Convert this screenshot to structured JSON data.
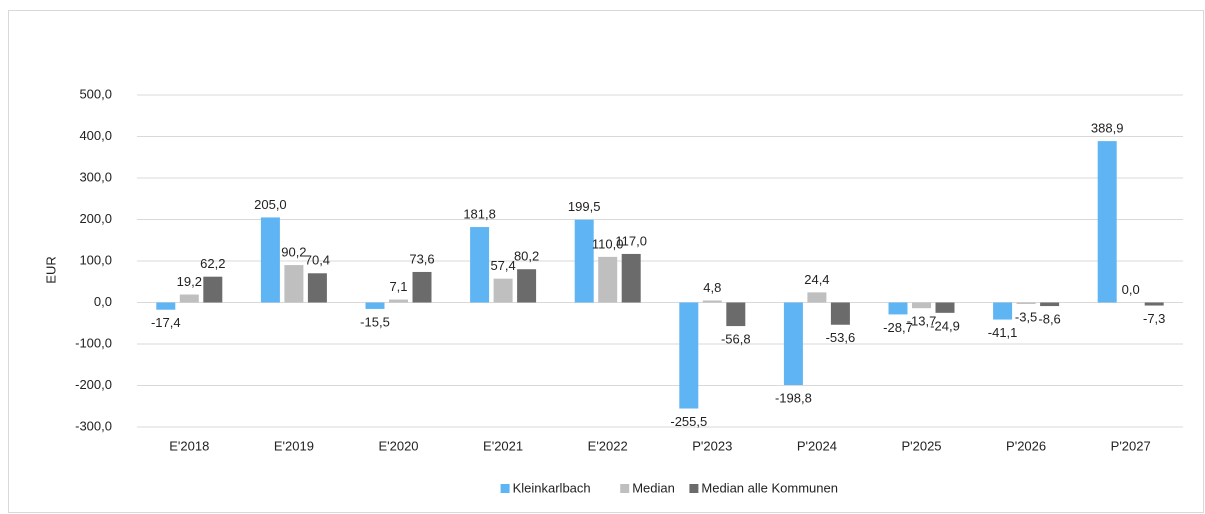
{
  "chart_data": {
    "type": "bar",
    "y_label": "EUR",
    "categories": [
      "E'2018",
      "E'2019",
      "E'2020",
      "E'2021",
      "E'2022",
      "P'2023",
      "P'2024",
      "P'2025",
      "P'2026",
      "P'2027"
    ],
    "series": [
      {
        "name": "Kleinkarlbach",
        "color": "#5fb4f4",
        "values": [
          -17.4,
          205.0,
          -15.5,
          181.8,
          199.5,
          -255.5,
          -198.8,
          -28.7,
          -41.1,
          388.9
        ],
        "value_labels": [
          "-17,4",
          "205,0",
          "-15,5",
          "181,8",
          "199,5",
          "-255,5",
          "-198,8",
          "-28,7",
          "-41,1",
          "388,9"
        ]
      },
      {
        "name": "Median",
        "color": "#bfbfbf",
        "values": [
          19.2,
          90.2,
          7.1,
          57.4,
          110.0,
          4.8,
          24.4,
          -13.7,
          -3.5,
          0.0
        ],
        "value_labels": [
          "19,2",
          "90,2",
          "7,1",
          "57,4",
          "110,0",
          "4,8",
          "24,4",
          "-13,7",
          "-3,5",
          "0,0"
        ]
      },
      {
        "name": "Median alle Kommunen",
        "color": "#6b6b6b",
        "values": [
          62.2,
          70.4,
          73.6,
          80.2,
          117.0,
          -56.8,
          -53.6,
          -24.9,
          -8.6,
          -7.3
        ],
        "value_labels": [
          "62,2",
          "70,4",
          "73,6",
          "80,2",
          "117,0",
          "-56,8",
          "-53,6",
          "-24,9",
          "-8,6",
          "-7,3"
        ]
      }
    ],
    "ylim": [
      -300,
      500
    ],
    "yticks": [
      {
        "value": -300,
        "label": "-300,0"
      },
      {
        "value": -200,
        "label": "-200,0"
      },
      {
        "value": -100,
        "label": "-100,0"
      },
      {
        "value": 0,
        "label": "0,0"
      },
      {
        "value": 100,
        "label": "100,0"
      },
      {
        "value": 200,
        "label": "200,0"
      },
      {
        "value": 300,
        "label": "300,0"
      },
      {
        "value": 400,
        "label": "400,0"
      },
      {
        "value": 500,
        "label": "500,0"
      }
    ],
    "grid": true,
    "legend": "bottom"
  }
}
